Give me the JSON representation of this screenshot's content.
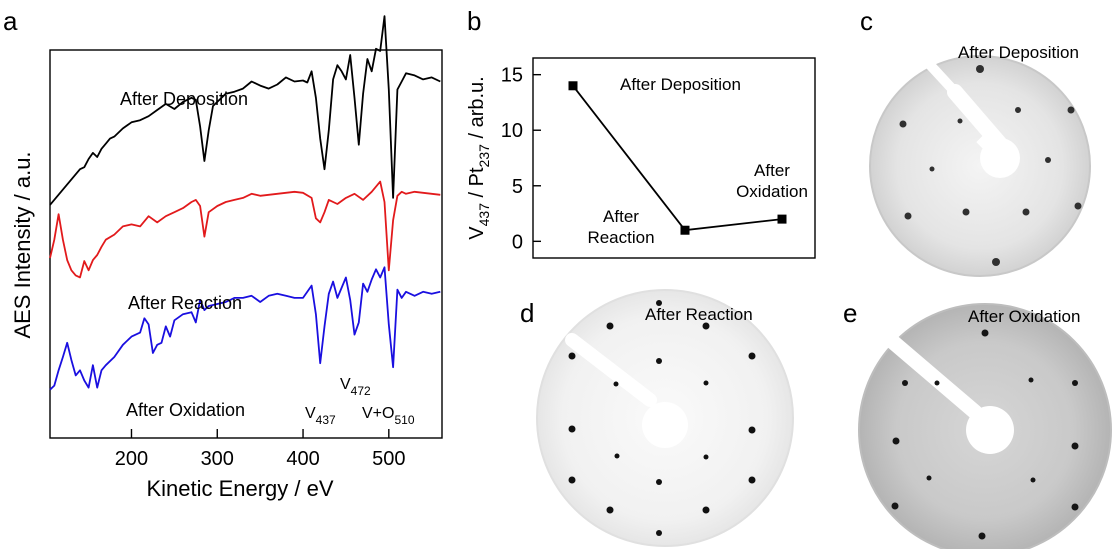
{
  "panel_labels": {
    "a": "a",
    "b": "b",
    "c": "c",
    "d": "d",
    "e": "e"
  },
  "chart_data": [
    {
      "type": "line",
      "panel": "a",
      "xlabel": "Kinetic Energy / eV",
      "ylabel": "AES Intensity / a.u.",
      "xlim": [
        105,
        562
      ],
      "x_ticks": [
        200,
        300,
        400,
        500
      ],
      "grid": false,
      "series": [
        {
          "name": "After Deposition",
          "color": "#000000",
          "x": [
            105,
            110,
            120,
            130,
            140,
            145,
            150,
            155,
            160,
            165,
            170,
            175,
            180,
            185,
            190,
            200,
            210,
            220,
            230,
            240,
            250,
            260,
            270,
            275,
            280,
            285,
            290,
            295,
            300,
            310,
            320,
            330,
            340,
            350,
            360,
            370,
            380,
            390,
            400,
            405,
            410,
            415,
            420,
            425,
            430,
            435,
            440,
            445,
            450,
            455,
            460,
            465,
            470,
            475,
            480,
            485,
            490,
            495,
            500,
            505,
            510,
            515,
            520,
            530,
            540,
            550,
            560
          ],
          "y": [
            0.5,
            1.0,
            2.0,
            3.0,
            4.0,
            4.2,
            5.0,
            5.6,
            5.2,
            6.0,
            6.5,
            7.0,
            7.2,
            7.6,
            8.0,
            8.6,
            8.8,
            9.2,
            9.8,
            10.4,
            9.9,
            10.6,
            11.0,
            10.8,
            8.2,
            4.8,
            7.8,
            10.2,
            10.6,
            11.4,
            11.6,
            11.9,
            12.6,
            12.2,
            11.9,
            12.3,
            13.0,
            12.6,
            12.7,
            12.5,
            13.6,
            11.0,
            7.0,
            4.0,
            7.8,
            12.8,
            14.2,
            13.6,
            12.8,
            15.2,
            11.0,
            6.4,
            11.4,
            14.8,
            13.6,
            15.8,
            15.6,
            19.0,
            11.8,
            1.2,
            11.8,
            12.6,
            13.4,
            13.2,
            12.8,
            13.0,
            12.6
          ]
        },
        {
          "name": "After Reaction",
          "color": "#e21a1c",
          "x": [
            105,
            110,
            115,
            120,
            125,
            130,
            135,
            140,
            145,
            150,
            155,
            160,
            165,
            170,
            180,
            190,
            200,
            210,
            220,
            230,
            240,
            250,
            260,
            270,
            275,
            280,
            285,
            290,
            300,
            310,
            320,
            330,
            340,
            350,
            360,
            370,
            380,
            390,
            400,
            410,
            415,
            420,
            425,
            430,
            440,
            450,
            460,
            470,
            480,
            490,
            495,
            500,
            505,
            510,
            515,
            520,
            530,
            540,
            550,
            560
          ],
          "y": [
            -0.3,
            1.5,
            4.0,
            1.5,
            -0.5,
            -1.5,
            -2.0,
            -2.2,
            -0.6,
            -1.5,
            -0.5,
            0.0,
            0.8,
            1.5,
            2.0,
            2.8,
            3.0,
            2.8,
            3.8,
            3.2,
            3.8,
            4.2,
            4.6,
            5.2,
            5.4,
            4.8,
            1.8,
            4.2,
            4.8,
            5.2,
            5.4,
            5.6,
            6.0,
            5.8,
            5.9,
            6.0,
            6.1,
            6.2,
            6.1,
            5.6,
            3.6,
            3.2,
            4.2,
            5.4,
            5.0,
            5.6,
            6.0,
            5.4,
            6.2,
            7.2,
            5.2,
            -1.5,
            3.4,
            5.8,
            6.2,
            6.0,
            6.2,
            6.1,
            6.0,
            5.9
          ]
        },
        {
          "name": "After Oxidation",
          "color": "#1a0fe0",
          "x": [
            105,
            110,
            115,
            120,
            125,
            130,
            135,
            140,
            145,
            150,
            155,
            160,
            165,
            170,
            180,
            190,
            200,
            210,
            215,
            220,
            225,
            230,
            235,
            240,
            245,
            250,
            260,
            270,
            275,
            280,
            285,
            290,
            300,
            310,
            320,
            330,
            340,
            350,
            360,
            370,
            380,
            390,
            400,
            410,
            415,
            420,
            425,
            430,
            435,
            440,
            450,
            455,
            460,
            465,
            470,
            475,
            480,
            485,
            490,
            495,
            500,
            505,
            510,
            515,
            520,
            530,
            540,
            550,
            560
          ],
          "y": [
            -3.4,
            -3.0,
            -1.5,
            -0.2,
            1.2,
            -0.5,
            -2.0,
            -1.5,
            -2.5,
            -3.2,
            -1.0,
            -3.2,
            -1.5,
            -1.0,
            -0.2,
            1.0,
            1.8,
            2.2,
            3.6,
            3.0,
            0.2,
            1.0,
            1.2,
            2.8,
            1.8,
            3.4,
            4.0,
            4.2,
            3.2,
            5.4,
            4.4,
            4.8,
            5.0,
            5.2,
            5.6,
            5.6,
            5.8,
            5.2,
            5.8,
            6.0,
            5.8,
            5.6,
            5.6,
            6.8,
            4.0,
            -0.8,
            2.8,
            6.0,
            7.2,
            5.6,
            7.6,
            5.4,
            2.0,
            3.2,
            7.0,
            6.2,
            7.4,
            8.4,
            7.6,
            8.6,
            3.0,
            -1.2,
            6.4,
            5.6,
            6.2,
            5.8,
            6.2,
            6.0,
            6.2
          ]
        }
      ],
      "annotations": [
        {
          "text": "After Deposition",
          "color": "#000000"
        },
        {
          "text": "After Reaction",
          "color": "#000000"
        },
        {
          "text": "After Oxidation",
          "color": "#000000"
        },
        {
          "base": "V",
          "sub": "437"
        },
        {
          "base": "V",
          "sub": "472"
        },
        {
          "base": "V+O",
          "sub": "510"
        }
      ]
    },
    {
      "type": "line",
      "panel": "b",
      "ylabel": {
        "p1": "V",
        "s1": "437",
        "p2": " / Pt",
        "s2": "237",
        "p3": " / arb.u."
      },
      "ylim": [
        -1.5,
        16.5
      ],
      "y_ticks": [
        0,
        5,
        10,
        15
      ],
      "grid": false,
      "marker": "square",
      "color": "#000000",
      "points": [
        {
          "label": "After Deposition",
          "value": 14.0
        },
        {
          "label": "After Reaction",
          "value": 1.0
        },
        {
          "label": "After Oxidation",
          "value": 2.0
        }
      ],
      "point_labels": {
        "deposition": "After Deposition",
        "reaction_1": "After",
        "reaction_2": "Reaction",
        "oxidation_1": "After",
        "oxidation_2": "Oxidation"
      }
    }
  ],
  "images": [
    {
      "panel": "c",
      "caption": "After Deposition"
    },
    {
      "panel": "d",
      "caption": "After Reaction"
    },
    {
      "panel": "e",
      "caption": "After Oxidation"
    }
  ]
}
